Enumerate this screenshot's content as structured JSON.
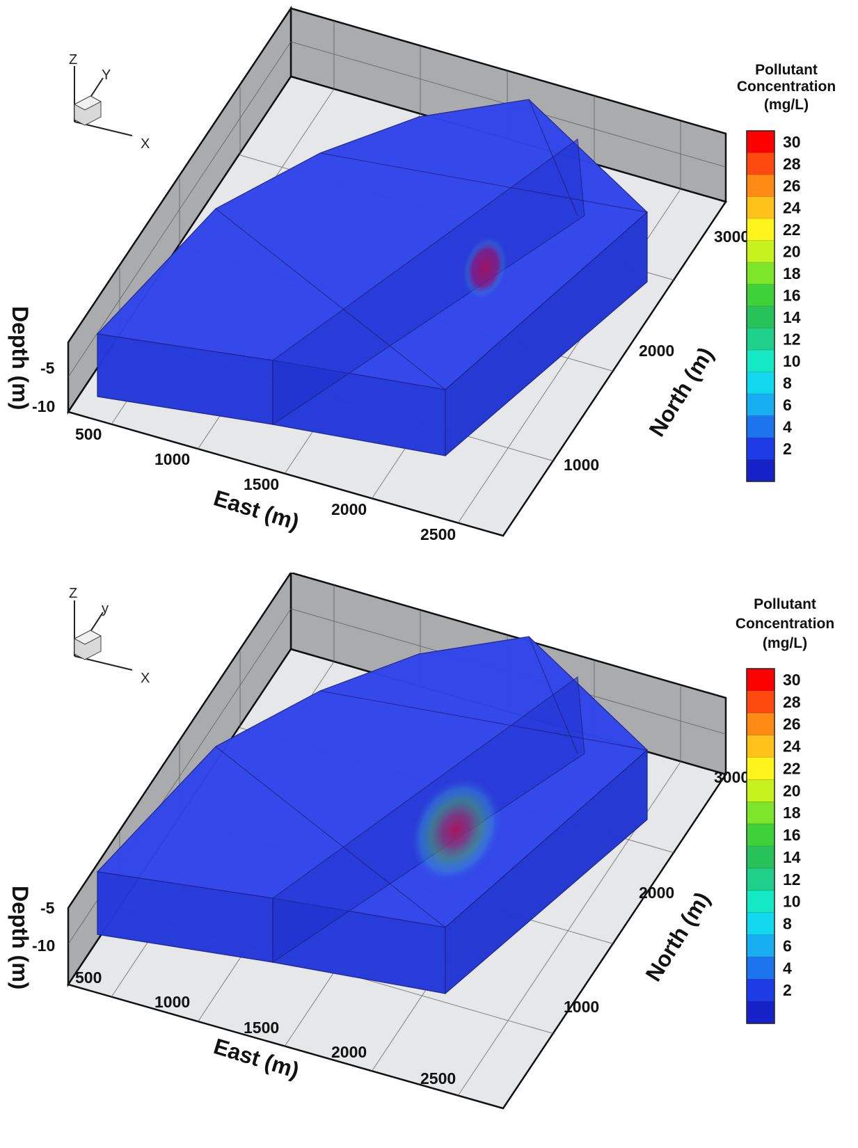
{
  "panels": [
    {
      "id": "top",
      "triad": {
        "z": "Z",
        "y": "Y",
        "x": "X"
      },
      "axes": {
        "east_title": "East (m)",
        "north_title": "North (m)",
        "depth_title": "Depth (m)",
        "east_ticks": [
          "500",
          "1000",
          "1500",
          "2000",
          "2500"
        ],
        "north_ticks": [
          "1000",
          "2000",
          "3000"
        ],
        "depth_ticks": [
          "-5",
          "-10"
        ]
      },
      "colorbar": {
        "title_lines": [
          "Pollutant",
          "Concentration",
          "(mg/L)"
        ],
        "levels": [
          "30",
          "28",
          "26",
          "24",
          "22",
          "20",
          "18",
          "16",
          "14",
          "12",
          "10",
          "8",
          "6",
          "4",
          "2"
        ]
      },
      "plume": {
        "intensity": 0.9,
        "spread": 0.25
      }
    },
    {
      "id": "bottom",
      "triad": {
        "z": "Z",
        "y": "y",
        "x": "X"
      },
      "axes": {
        "east_title": "East (m)",
        "north_title": "North (m)",
        "depth_title": "Depth (m)",
        "east_ticks": [
          "500",
          "1000",
          "1500",
          "2000",
          "2500"
        ],
        "north_ticks": [
          "1000",
          "2000",
          "3000"
        ],
        "depth_ticks": [
          "-5",
          "-10"
        ]
      },
      "colorbar": {
        "title_lines": [
          "Pollutant",
          "Concentration",
          "(mg/L)"
        ],
        "levels": [
          "30",
          "28",
          "26",
          "24",
          "22",
          "20",
          "18",
          "16",
          "14",
          "12",
          "10",
          "8",
          "6",
          "4",
          "2"
        ]
      },
      "plume": {
        "intensity": 1.0,
        "spread": 0.55
      }
    }
  ],
  "colors": {
    "plume_core": "#c0135a",
    "model_body": "#2a3fe0",
    "wall": "#a9abad",
    "floor": "#e6e7e8",
    "colormap": [
      "#ff0000",
      "#ff4a0f",
      "#ff8a14",
      "#ffc21a",
      "#fff41c",
      "#c8f21e",
      "#7ee62a",
      "#3ed13a",
      "#28c25a",
      "#1fd08a",
      "#14e8c4",
      "#12d8ef",
      "#18aef2",
      "#1c74ee",
      "#1d3ce6",
      "#1422c8"
    ]
  }
}
